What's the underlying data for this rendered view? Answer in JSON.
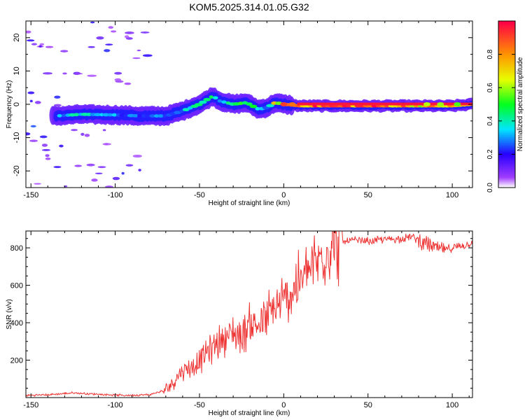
{
  "chart_data": [
    {
      "type": "heatmap",
      "title": "KOM5.2025.314.01.05.G32",
      "xlabel": "Height of straight line (km)",
      "ylabel": "Frequency (Hz)",
      "xlim": [
        -153,
        112
      ],
      "ylim": [
        -25,
        25
      ],
      "xticks": [
        -150,
        -100,
        -50,
        0,
        50,
        100
      ],
      "yticks": [
        -20,
        -10,
        0,
        10,
        20
      ],
      "ridge": {
        "x": [
          -135,
          -120,
          -100,
          -85,
          -70,
          -60,
          -50,
          -42,
          -38,
          -30,
          -22,
          -15,
          -10,
          -5,
          0,
          10,
          50,
          100,
          112
        ],
        "frequency": [
          -3.5,
          -3,
          -3.2,
          -3.5,
          -3.5,
          -2,
          0,
          2.5,
          1,
          0,
          0.5,
          -1.5,
          -1,
          0.5,
          0,
          -0.5,
          -0.5,
          -0.5,
          0
        ],
        "amplitude": [
          0.3,
          0.4,
          0.3,
          0.3,
          0.3,
          0.35,
          0.4,
          0.45,
          0.3,
          0.45,
          0.5,
          0.4,
          0.35,
          0.7,
          0.9,
          0.95,
          0.95,
          0.75,
          0.8
        ]
      },
      "colorbar": {
        "label": "Normalized spectral amplitude",
        "range": [
          0,
          1
        ],
        "ticks": [
          "0.0",
          "0.2",
          "0.4",
          "0.6",
          "0.8"
        ]
      }
    },
    {
      "type": "line",
      "title": "",
      "xlabel": "Height of straight line (km)",
      "ylabel": "SNR (v/v)",
      "xlim": [
        -153,
        112
      ],
      "ylim": [
        0,
        890
      ],
      "xticks": [
        -150,
        -100,
        -50,
        0,
        50,
        100
      ],
      "yticks": [
        200,
        400,
        600,
        800
      ],
      "color": "#ee3333",
      "series": [
        {
          "name": "SNR",
          "x": [
            -153,
            -140,
            -125,
            -110,
            -95,
            -80,
            -70,
            -65,
            -60,
            -55,
            -50,
            -45,
            -40,
            -35,
            -30,
            -25,
            -20,
            -15,
            -10,
            -5,
            0,
            5,
            10,
            15,
            20,
            25,
            30,
            35,
            40,
            50,
            60,
            70,
            75,
            80,
            85,
            90,
            95,
            100,
            105,
            110,
            112
          ],
          "y": [
            12,
            15,
            25,
            18,
            12,
            15,
            40,
            90,
            150,
            160,
            190,
            250,
            290,
            320,
            350,
            330,
            400,
            380,
            430,
            470,
            520,
            570,
            620,
            680,
            730,
            780,
            815,
            830,
            840,
            835,
            845,
            850,
            860,
            845,
            820,
            800,
            790,
            800,
            810,
            820,
            830
          ]
        }
      ]
    }
  ]
}
